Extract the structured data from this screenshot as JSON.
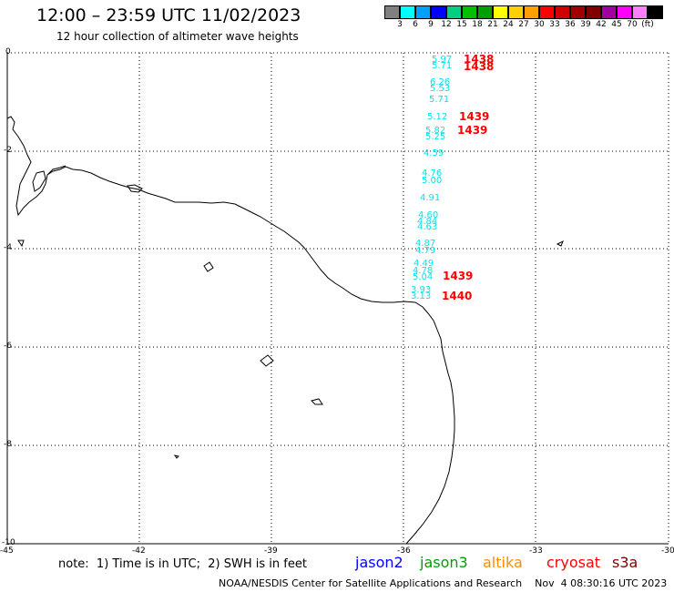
{
  "header": {
    "title": "12:00 – 23:59 UTC 11/02/2023",
    "subtitle": "12 hour collection of altimeter wave heights"
  },
  "colorbar": {
    "colors": [
      "#808080",
      "#00ffff",
      "#00a0ff",
      "#0000ff",
      "#00d080",
      "#00c000",
      "#00a000",
      "#ffff00",
      "#ffd000",
      "#ffa000",
      "#ff0000",
      "#d00000",
      "#a00000",
      "#800000",
      "#a000a0",
      "#ff00ff",
      "#ff80ff",
      "#000000"
    ],
    "labels": [
      "3",
      "6",
      "9",
      "12",
      "15",
      "18",
      "21",
      "24",
      "27",
      "30",
      "33",
      "36",
      "39",
      "42",
      "45",
      "70",
      "(ft)"
    ]
  },
  "map": {
    "lat_labels": [
      "0",
      "-2",
      "-4",
      "-6",
      "-8",
      "-10"
    ],
    "lon_labels": [
      "-45",
      "-42",
      "-39",
      "-36",
      "-33",
      "-30"
    ],
    "wave_heights": [
      "5.97",
      "5.71",
      "6.26",
      "5.53",
      "5.71",
      "5.12",
      "5.82",
      "5.25",
      "4.59",
      "4.76",
      "5.00",
      "4.91",
      "4.60",
      "4.84",
      "4.63",
      "4.87",
      "4.79",
      "4.49",
      "4.78",
      "5.04",
      "3.93",
      "3.13"
    ],
    "pass_times": [
      "1438",
      "1438",
      "1439",
      "1439",
      "1439",
      "1440"
    ],
    "swh_color": "#00e5ee",
    "time_color": "#ff0000"
  },
  "note": "note:  1) Time is in UTC;  2) SWH is in feet",
  "satellites": [
    {
      "name": "jason2",
      "color": "#0000ff"
    },
    {
      "name": "jason3",
      "color": "#00a000"
    },
    {
      "name": "altika",
      "color": "#ff8c00"
    },
    {
      "name": "cryosat",
      "color": "#ff0000"
    },
    {
      "name": "s3a",
      "color": "#800000"
    }
  ],
  "footer": "NOAA/NESDIS Center for Satellite Applications and Research    Nov  4 08:30:16 UTC 2023"
}
